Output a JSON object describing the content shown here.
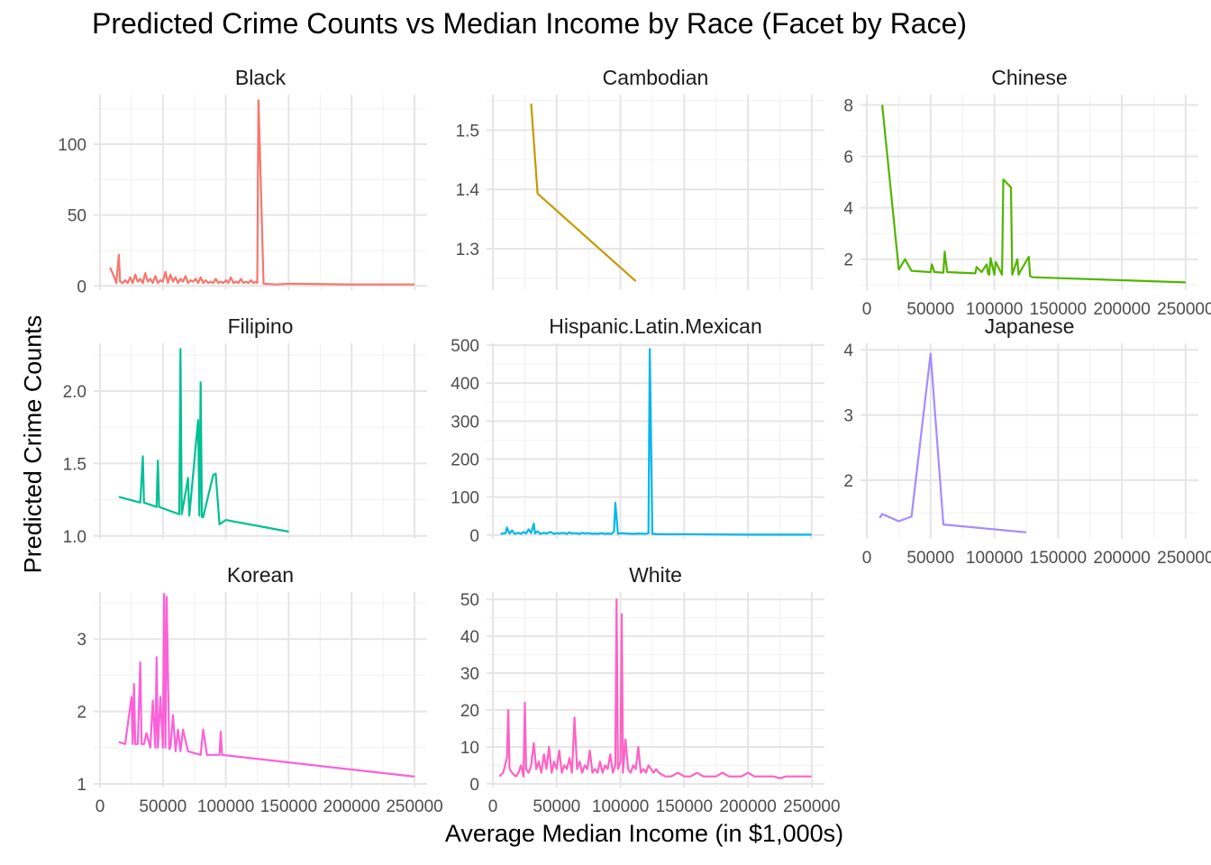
{
  "title": "Predicted Crime Counts vs Median Income by Race (Facet by Race)",
  "x_axis_title": "Average Median Income (in $1,000s)",
  "y_axis_title": "Predicted Crime Counts",
  "chart_data": {
    "type": "line",
    "title": "Predicted Crime Counts vs Median Income by Race (Facet by Race)",
    "xlabel": "Average Median Income (in $1,000s)",
    "ylabel": "Predicted Crime Counts",
    "xlim": [
      -5000,
      260000
    ],
    "x_ticks": [
      0,
      50000,
      100000,
      150000,
      200000,
      250000
    ],
    "x_tick_labels": [
      "0",
      "50000",
      "100000",
      "150000",
      "200000",
      "250000"
    ],
    "grid": true,
    "legend": "none",
    "facets": [
      {
        "name": "Black",
        "color": "#F8766D",
        "ylim": [
          -3,
          135
        ],
        "y_ticks": [
          0,
          50,
          100
        ],
        "y_tick_labels": [
          "0",
          "50",
          "100"
        ],
        "x": [
          8000,
          11000,
          13000,
          15000,
          16000,
          18000,
          20000,
          22000,
          24000,
          26000,
          28000,
          30000,
          32000,
          34000,
          36000,
          38000,
          40000,
          42000,
          44000,
          46000,
          48000,
          50000,
          52000,
          54000,
          56000,
          58000,
          60000,
          62000,
          64000,
          66000,
          68000,
          70000,
          72000,
          74000,
          76000,
          78000,
          80000,
          82000,
          84000,
          86000,
          88000,
          90000,
          92000,
          94000,
          96000,
          98000,
          100000,
          102000,
          104000,
          106000,
          108000,
          110000,
          112000,
          114000,
          116000,
          118000,
          120000,
          122000,
          124000,
          125000,
          126000,
          130000,
          140000,
          150000,
          200000,
          250000
        ],
        "y": [
          13,
          7,
          2,
          22,
          3,
          2,
          4,
          2,
          6,
          2,
          8,
          3,
          5,
          2,
          9,
          3,
          5,
          2,
          7,
          2,
          4,
          3,
          10,
          2,
          8,
          3,
          6,
          2,
          5,
          3,
          7,
          2,
          4,
          3,
          5,
          2,
          6,
          2,
          4,
          2,
          3,
          2,
          5,
          2,
          3,
          2,
          4,
          2,
          6,
          2,
          3,
          2,
          5,
          2,
          3,
          2,
          4,
          2,
          3,
          2,
          131,
          1.5,
          1,
          1.5,
          1,
          1
        ]
      },
      {
        "name": "Cambodian",
        "color": "#C49A00",
        "ylim": [
          1.23,
          1.56
        ],
        "y_ticks": [
          1.3,
          1.4,
          1.5
        ],
        "y_tick_labels": [
          "1.3",
          "1.4",
          "1.5"
        ],
        "x": [
          30000,
          35000,
          112000
        ],
        "y": [
          1.545,
          1.393,
          1.245
        ]
      },
      {
        "name": "Chinese",
        "color": "#53B400",
        "ylim": [
          0.8,
          8.4
        ],
        "y_ticks": [
          2,
          4,
          6,
          8
        ],
        "y_tick_labels": [
          "2",
          "4",
          "6",
          "8"
        ],
        "x": [
          12000,
          25000,
          30000,
          35000,
          50000,
          51000,
          53000,
          60000,
          61000,
          63000,
          85000,
          86000,
          90000,
          94000,
          95000,
          96000,
          97000,
          100000,
          101000,
          106000,
          107000,
          109000,
          113000,
          114000,
          118000,
          119000,
          120000,
          127000,
          128000,
          130000,
          250000
        ],
        "y": [
          8,
          1.6,
          2,
          1.55,
          1.5,
          1.8,
          1.5,
          1.48,
          2.3,
          1.5,
          1.45,
          1.7,
          1.5,
          1.8,
          1.45,
          1.4,
          2.05,
          1.4,
          1.9,
          1.4,
          5.1,
          5,
          4.8,
          1.4,
          2,
          1.4,
          1.5,
          2.1,
          1.35,
          1.3,
          1.1
        ]
      },
      {
        "name": "Filipino",
        "color": "#00C094",
        "ylim": [
          0.98,
          2.33
        ],
        "y_ticks": [
          1.0,
          1.5,
          2.0
        ],
        "y_tick_labels": [
          "1.0",
          "1.5",
          "2.0"
        ],
        "x": [
          15000,
          32000,
          34000,
          35000,
          45000,
          46000,
          47000,
          63000,
          64000,
          65000,
          70000,
          71000,
          78000,
          79000,
          80000,
          81000,
          82000,
          90000,
          92000,
          95000,
          100000,
          150000
        ],
        "y": [
          1.27,
          1.23,
          1.55,
          1.23,
          1.2,
          1.52,
          1.2,
          1.15,
          2.29,
          1.15,
          1.4,
          1.14,
          1.8,
          1.14,
          2.06,
          1.13,
          1.13,
          1.42,
          1.43,
          1.08,
          1.11,
          1.03
        ]
      },
      {
        "name": "Hispanic.Latin.Mexican",
        "color": "#00B6EB",
        "ylim": [
          -10,
          505
        ],
        "y_ticks": [
          0,
          100,
          200,
          300,
          400,
          500
        ],
        "y_tick_labels": [
          "0",
          "100",
          "200",
          "300",
          "400",
          "500"
        ],
        "x": [
          6000,
          10000,
          11000,
          13000,
          15000,
          17000,
          20000,
          22000,
          24000,
          26000,
          28000,
          30000,
          32000,
          33000,
          35000,
          37000,
          40000,
          42000,
          45000,
          48000,
          50000,
          52000,
          55000,
          58000,
          60000,
          62000,
          65000,
          68000,
          70000,
          72000,
          75000,
          78000,
          80000,
          82000,
          85000,
          88000,
          90000,
          93000,
          95000,
          96000,
          98000,
          100000,
          105000,
          110000,
          115000,
          120000,
          122000,
          123000,
          125000,
          130000,
          140000,
          150000,
          200000,
          250000
        ],
        "y": [
          3,
          5,
          20,
          4,
          12,
          3,
          6,
          3,
          8,
          4,
          15,
          5,
          30,
          4,
          10,
          3,
          6,
          4,
          8,
          3,
          5,
          4,
          6,
          3,
          7,
          4,
          5,
          3,
          6,
          4,
          5,
          3,
          4,
          3,
          5,
          3,
          4,
          3,
          10,
          85,
          3,
          5,
          4,
          3,
          4,
          3,
          5,
          490,
          3,
          2,
          2,
          2,
          1,
          1
        ]
      },
      {
        "name": "Japanese",
        "color": "#A58AFF",
        "ylim": [
          1.1,
          4.1
        ],
        "y_ticks": [
          2,
          3,
          4
        ],
        "y_tick_labels": [
          "2",
          "3",
          "4"
        ],
        "x": [
          10000,
          12000,
          25000,
          35000,
          50000,
          60000,
          125000
        ],
        "y": [
          1.42,
          1.48,
          1.37,
          1.44,
          3.94,
          1.32,
          1.2
        ]
      },
      {
        "name": "Korean",
        "color": "#FB61D7",
        "ylim": [
          0.95,
          3.65
        ],
        "y_ticks": [
          1,
          2,
          3
        ],
        "y_tick_labels": [
          "1",
          "2",
          "3"
        ],
        "x": [
          15000,
          20000,
          25000,
          26000,
          27000,
          28000,
          30000,
          32000,
          33000,
          35000,
          37000,
          40000,
          42000,
          44000,
          45000,
          46000,
          48000,
          50000,
          51000,
          52000,
          53000,
          55000,
          56000,
          58000,
          60000,
          62000,
          64000,
          66000,
          70000,
          80000,
          82000,
          85000,
          95000,
          96000,
          97000,
          250000
        ],
        "y": [
          1.58,
          1.55,
          2.2,
          1.55,
          2.38,
          1.55,
          1.55,
          2.68,
          1.55,
          1.55,
          1.7,
          1.5,
          2.15,
          1.5,
          2.75,
          1.5,
          2.2,
          1.5,
          3.62,
          1.5,
          3.58,
          1.48,
          1.5,
          1.95,
          1.45,
          1.75,
          1.45,
          1.75,
          1.45,
          1.4,
          1.75,
          1.4,
          1.4,
          1.72,
          1.4,
          1.1
        ]
      },
      {
        "name": "White",
        "color": "#FF61C3",
        "ylim": [
          -1,
          52
        ],
        "y_ticks": [
          0,
          10,
          20,
          30,
          40,
          50
        ],
        "y_tick_labels": [
          "0",
          "10",
          "20",
          "30",
          "40",
          "50"
        ],
        "x": [
          5000,
          8000,
          11000,
          12000,
          13000,
          15000,
          18000,
          20000,
          22000,
          24000,
          25000,
          26000,
          28000,
          30000,
          32000,
          34000,
          36000,
          38000,
          40000,
          42000,
          44000,
          46000,
          48000,
          50000,
          52000,
          54000,
          56000,
          58000,
          60000,
          62000,
          64000,
          66000,
          68000,
          70000,
          72000,
          74000,
          76000,
          78000,
          80000,
          82000,
          84000,
          86000,
          88000,
          90000,
          92000,
          94000,
          96000,
          97000,
          98000,
          100000,
          101000,
          102000,
          104000,
          106000,
          108000,
          110000,
          112000,
          114000,
          116000,
          118000,
          120000,
          122000,
          124000,
          126000,
          128000,
          130000,
          135000,
          140000,
          145000,
          150000,
          155000,
          160000,
          165000,
          170000,
          175000,
          180000,
          185000,
          190000,
          195000,
          200000,
          205000,
          210000,
          215000,
          220000,
          225000,
          230000,
          240000,
          250000
        ],
        "y": [
          2,
          3,
          7,
          20,
          4,
          3,
          2,
          3,
          5,
          2,
          22,
          4,
          3,
          5,
          11,
          4,
          6,
          3,
          8,
          4,
          10,
          3,
          6,
          4,
          9,
          3,
          5,
          4,
          7,
          3,
          18,
          4,
          6,
          3,
          5,
          4,
          9,
          3,
          4,
          3,
          6,
          3,
          5,
          4,
          8,
          3,
          5,
          50,
          4,
          6,
          46,
          3,
          12,
          4,
          3,
          5,
          4,
          10,
          3,
          4,
          3,
          5,
          4,
          3,
          4,
          3,
          2,
          2,
          3,
          2,
          2,
          3,
          2,
          2,
          2,
          3,
          2,
          2,
          2,
          3,
          2,
          2,
          2,
          2,
          1.5,
          2,
          2,
          2
        ]
      }
    ]
  }
}
